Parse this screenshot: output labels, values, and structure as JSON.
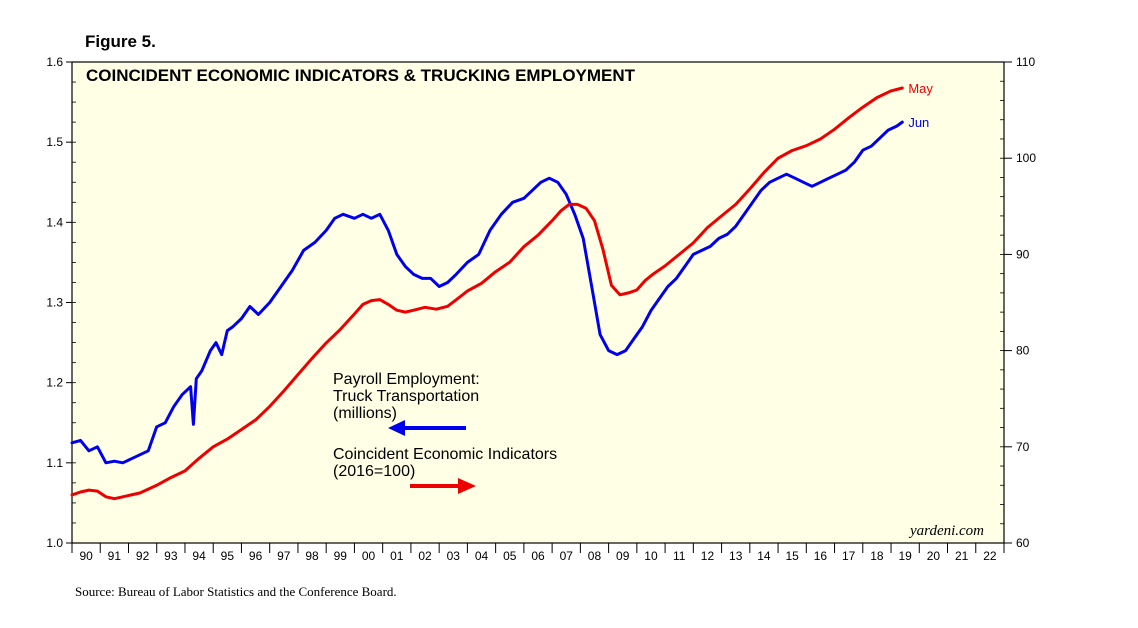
{
  "figure_label": "Figure 5.",
  "chart_data": {
    "type": "line",
    "title": "COINCIDENT ECONOMIC INDICATORS & TRUCKING EMPLOYMENT",
    "left_axis": {
      "ylim": [
        1.0,
        1.6
      ],
      "ticks": [
        1.0,
        1.1,
        1.2,
        1.3,
        1.4,
        1.5,
        1.6
      ],
      "tick_labels": [
        "1.0",
        "1.1",
        "1.2",
        "1.3",
        "1.4",
        "1.5",
        "1.6"
      ]
    },
    "right_axis": {
      "ylim": [
        60,
        110
      ],
      "ticks": [
        60,
        70,
        80,
        90,
        100,
        110
      ],
      "tick_labels": [
        "60",
        "70",
        "80",
        "90",
        "100",
        "110"
      ]
    },
    "x_axis": {
      "xlim": [
        1990,
        2023
      ],
      "year_labels": [
        "90",
        "91",
        "92",
        "93",
        "94",
        "95",
        "96",
        "97",
        "98",
        "99",
        "00",
        "01",
        "02",
        "03",
        "04",
        "05",
        "06",
        "07",
        "08",
        "09",
        "10",
        "11",
        "12",
        "13",
        "14",
        "15",
        "16",
        "17",
        "18",
        "19",
        "20",
        "21",
        "22"
      ]
    },
    "series": [
      {
        "name": "Payroll Employment: Truck Transportation (millions)",
        "axis": "left",
        "color": "#0000ee",
        "end_label": "Jun",
        "x": [
          1990.0,
          1990.3,
          1990.6,
          1990.9,
          1991.2,
          1991.5,
          1991.8,
          1992.1,
          1992.4,
          1992.7,
          1993.0,
          1993.3,
          1993.6,
          1993.9,
          1994.2,
          1994.3,
          1994.4,
          1994.6,
          1994.9,
          1995.1,
          1995.3,
          1995.5,
          1995.7,
          1996.0,
          1996.3,
          1996.6,
          1997.0,
          1997.4,
          1997.8,
          1998.2,
          1998.6,
          1999.0,
          1999.3,
          1999.6,
          2000.0,
          2000.3,
          2000.6,
          2000.9,
          2001.2,
          2001.5,
          2001.8,
          2002.1,
          2002.4,
          2002.7,
          2003.0,
          2003.3,
          2003.6,
          2004.0,
          2004.4,
          2004.8,
          2005.2,
          2005.6,
          2006.0,
          2006.3,
          2006.6,
          2006.9,
          2007.2,
          2007.5,
          2007.8,
          2008.1,
          2008.4,
          2008.7,
          2009.0,
          2009.3,
          2009.6,
          2009.9,
          2010.2,
          2010.5,
          2010.8,
          2011.1,
          2011.4,
          2011.7,
          2012.0,
          2012.3,
          2012.6,
          2012.9,
          2013.2,
          2013.5,
          2013.8,
          2014.1,
          2014.4,
          2014.7,
          2015.0,
          2015.3,
          2015.6,
          2015.9,
          2016.2,
          2016.5,
          2016.8,
          2017.1,
          2017.4,
          2017.7,
          2018.0,
          2018.3,
          2018.6,
          2018.9,
          2019.2,
          2019.4
        ],
        "values": [
          1.125,
          1.128,
          1.115,
          1.12,
          1.1,
          1.102,
          1.1,
          1.105,
          1.11,
          1.115,
          1.145,
          1.15,
          1.17,
          1.185,
          1.195,
          1.148,
          1.205,
          1.215,
          1.24,
          1.25,
          1.235,
          1.265,
          1.27,
          1.28,
          1.295,
          1.285,
          1.3,
          1.32,
          1.34,
          1.365,
          1.375,
          1.39,
          1.405,
          1.41,
          1.405,
          1.41,
          1.405,
          1.41,
          1.39,
          1.36,
          1.345,
          1.335,
          1.33,
          1.33,
          1.32,
          1.325,
          1.335,
          1.35,
          1.36,
          1.39,
          1.41,
          1.425,
          1.43,
          1.44,
          1.45,
          1.455,
          1.45,
          1.435,
          1.41,
          1.38,
          1.32,
          1.26,
          1.24,
          1.235,
          1.24,
          1.255,
          1.27,
          1.29,
          1.305,
          1.32,
          1.33,
          1.345,
          1.36,
          1.365,
          1.37,
          1.38,
          1.385,
          1.395,
          1.41,
          1.425,
          1.44,
          1.45,
          1.455,
          1.46,
          1.455,
          1.45,
          1.445,
          1.45,
          1.455,
          1.46,
          1.465,
          1.475,
          1.49,
          1.495,
          1.505,
          1.515,
          1.52,
          1.525
        ]
      },
      {
        "name": "Coincident Economic Indicators (2016=100)",
        "axis": "right",
        "color": "#ee0000",
        "end_label": "May",
        "x": [
          1990.0,
          1990.3,
          1990.6,
          1990.9,
          1991.2,
          1991.5,
          1991.8,
          1992.1,
          1992.4,
          1992.7,
          1993.0,
          1993.5,
          1994.0,
          1994.5,
          1995.0,
          1995.5,
          1996.0,
          1996.5,
          1997.0,
          1997.5,
          1998.0,
          1998.5,
          1999.0,
          1999.5,
          2000.0,
          2000.3,
          2000.6,
          2000.9,
          2001.2,
          2001.5,
          2001.8,
          2002.1,
          2002.5,
          2002.9,
          2003.3,
          2003.7,
          2004.0,
          2004.5,
          2005.0,
          2005.5,
          2006.0,
          2006.5,
          2007.0,
          2007.3,
          2007.6,
          2007.9,
          2008.2,
          2008.5,
          2008.8,
          2009.1,
          2009.4,
          2009.7,
          2010.0,
          2010.3,
          2010.6,
          2011.0,
          2011.5,
          2012.0,
          2012.5,
          2013.0,
          2013.5,
          2014.0,
          2014.5,
          2015.0,
          2015.5,
          2016.0,
          2016.5,
          2017.0,
          2017.5,
          2018.0,
          2018.5,
          2019.0,
          2019.4
        ],
        "values": [
          65.0,
          65.3,
          65.5,
          65.4,
          64.8,
          64.6,
          64.8,
          65.0,
          65.2,
          65.6,
          66.0,
          66.8,
          67.5,
          68.8,
          70.0,
          70.8,
          71.8,
          72.8,
          74.2,
          75.8,
          77.5,
          79.2,
          80.8,
          82.2,
          83.8,
          84.8,
          85.2,
          85.3,
          84.8,
          84.2,
          84.0,
          84.2,
          84.5,
          84.3,
          84.6,
          85.5,
          86.2,
          87.0,
          88.2,
          89.2,
          90.8,
          92.0,
          93.5,
          94.5,
          95.2,
          95.2,
          94.8,
          93.5,
          90.5,
          86.8,
          85.8,
          86.0,
          86.3,
          87.3,
          88.0,
          88.8,
          90.0,
          91.2,
          92.8,
          94.0,
          95.2,
          96.8,
          98.5,
          100.0,
          100.8,
          101.3,
          102.0,
          103.0,
          104.2,
          105.3,
          106.3,
          107.0,
          107.3
        ]
      }
    ],
    "annotations": {
      "payroll_lines": [
        "Payroll Employment:",
        "Truck Transportation",
        "(millions)"
      ],
      "cei_lines": [
        "Coincident Economic Indicators",
        "(2016=100)"
      ]
    },
    "brand": "yardeni.com",
    "source": "Source: Bureau of Labor Statistics and the Conference Board."
  },
  "colors": {
    "plot_background": "#ffffe6",
    "blue": "#0000ee",
    "red": "#ee0000"
  }
}
